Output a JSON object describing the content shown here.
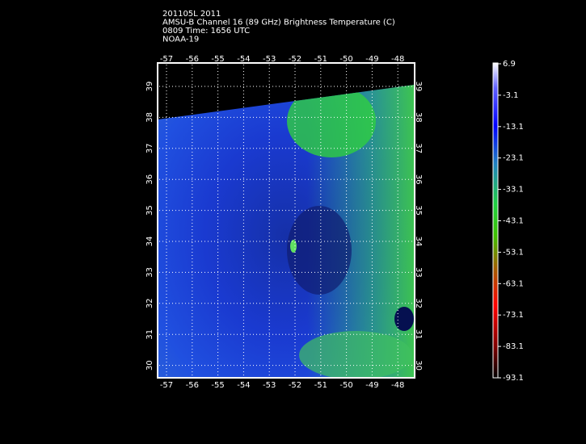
{
  "header": {
    "lines": [
      "201105L 2011",
      "AMSU-B Channel 16 (89 GHz) Brightness Temperature (C)",
      "0809 Time: 1656 UTC",
      "NOAA-19"
    ]
  },
  "map": {
    "lon_ticks": [
      -57,
      -56,
      -55,
      -54,
      -53,
      -52,
      -51,
      -50,
      -49,
      -48
    ],
    "lat_ticks": [
      39,
      38,
      37,
      36,
      35,
      34,
      33,
      32,
      31,
      30
    ]
  },
  "colorbar": {
    "labels": [
      6.9,
      -3.1,
      -13.1,
      -23.1,
      -33.1,
      -43.1,
      -53.1,
      -63.1,
      -73.1,
      -83.1,
      -93.1
    ]
  }
}
